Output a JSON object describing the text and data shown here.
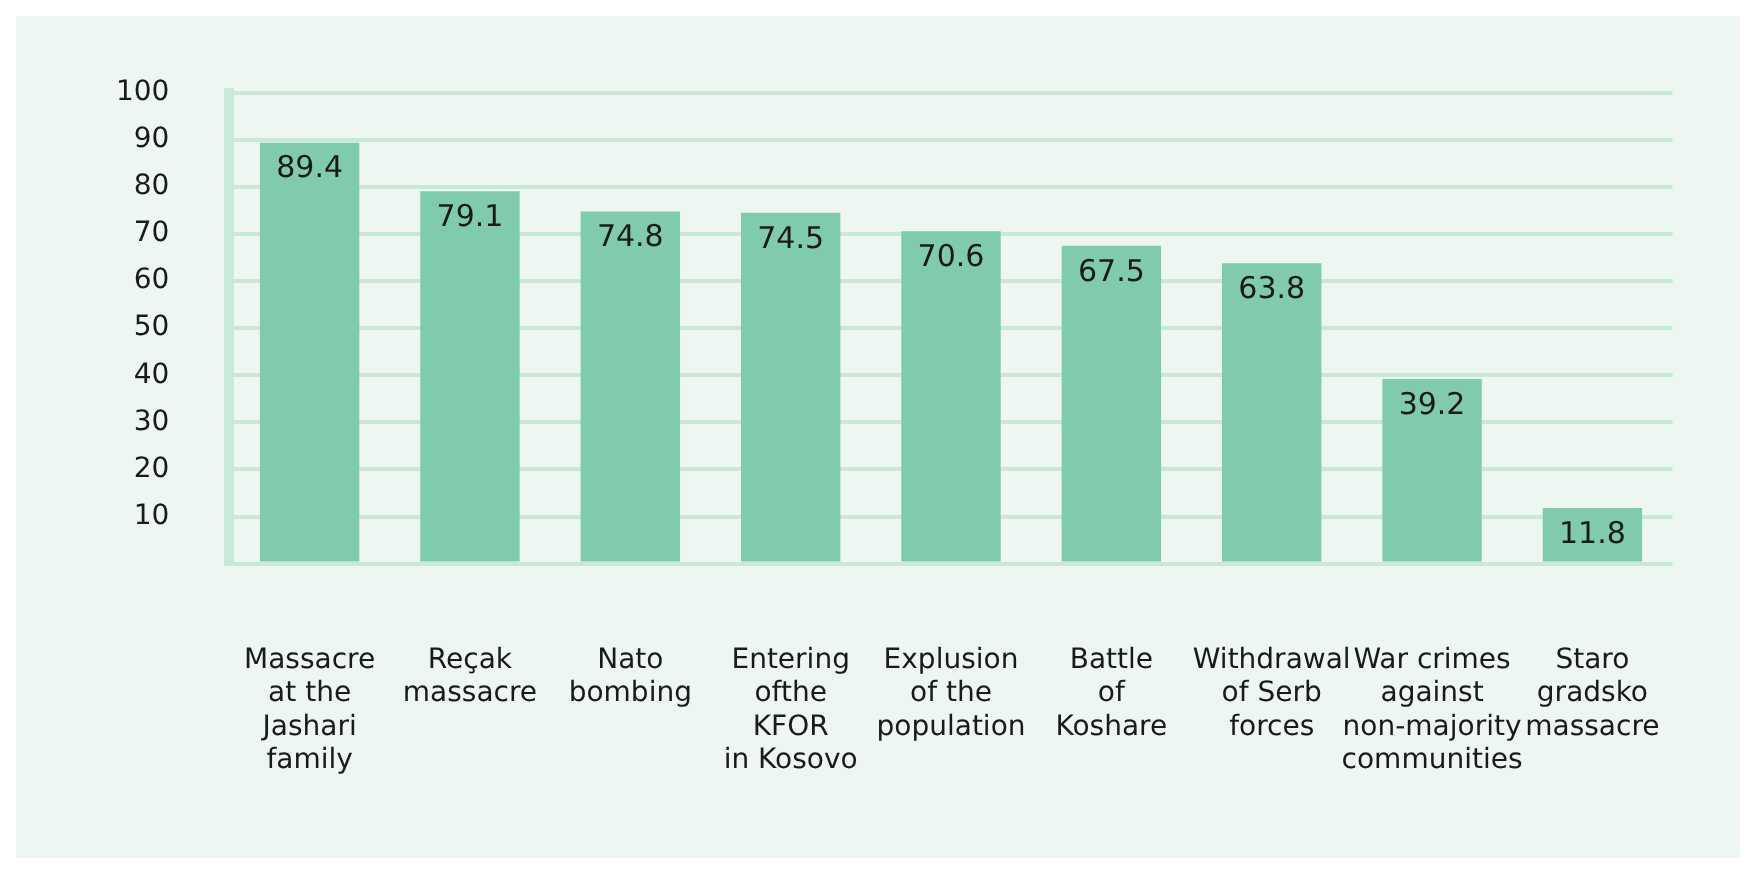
{
  "chart_data": {
    "type": "bar",
    "categories": [
      "Massacre\nat the\nJashari\nfamily",
      "Reçak\nmassacre",
      "Nato\nbombing",
      "Entering\nofthe\nKFOR\nin Kosovo",
      "Explusion\nof the\npopulation",
      "Battle\nof\nKoshare",
      "Withdrawal\nof Serb\nforces",
      "War crimes\nagainst\nnon-majority\ncommunities",
      "Staro\ngradsko\nmassacre"
    ],
    "values": [
      89.4,
      79.1,
      74.8,
      74.5,
      70.6,
      67.5,
      63.8,
      39.2,
      11.8
    ],
    "color": "#80cbad",
    "ylim": [
      0,
      100
    ],
    "yticks": [
      {
        "value": 0,
        "label": null
      },
      10,
      20,
      30,
      40,
      50,
      60,
      70,
      80,
      90,
      100
    ],
    "grid": "y",
    "data_labels": true
  }
}
